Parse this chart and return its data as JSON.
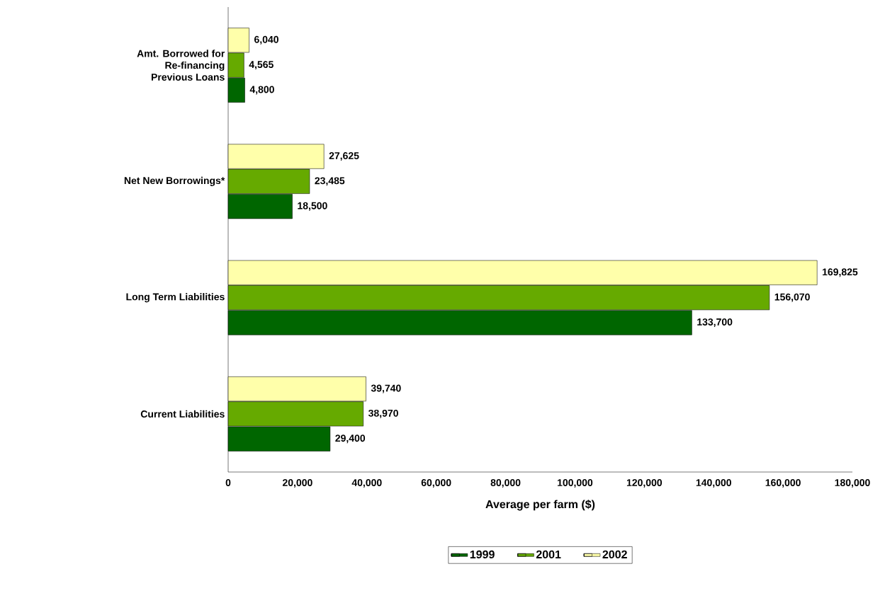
{
  "chart_data": {
    "type": "bar",
    "orientation": "horizontal",
    "categories": [
      "Amt. Borrowed for Re-financing Previous Loans",
      "Net New Borrowings*",
      "Long Term Liabilities",
      "Current Liabilities"
    ],
    "series": [
      {
        "name": "1999",
        "color": "#006600",
        "values": [
          4800,
          18500,
          133700,
          29400
        ],
        "value_labels": [
          "4,800",
          "18,500",
          "133,700",
          "29,400"
        ]
      },
      {
        "name": "2001",
        "color": "#66aa00",
        "values": [
          4565,
          23485,
          156070,
          38970
        ],
        "value_labels": [
          "4,565",
          "23,485",
          "156,070",
          "38,970"
        ]
      },
      {
        "name": "2002",
        "color": "#ffffaa",
        "values": [
          6040,
          27625,
          169825,
          39740
        ],
        "value_labels": [
          "6,040",
          "27,625",
          "169,825",
          "39,740"
        ]
      }
    ],
    "xlim": [
      0,
      180000
    ],
    "xticks": [
      0,
      {
        "value": 20000,
        "label": "20,000"
      },
      {
        "value": 40000,
        "label": "40,000"
      },
      {
        "value": 60000,
        "label": "60,000"
      },
      {
        "value": 80000,
        "label": "80,000"
      },
      {
        "value": 100000,
        "label": "100,000"
      },
      {
        "value": 120000,
        "label": "120,000"
      },
      {
        "value": 140000,
        "label": "140,000"
      },
      {
        "value": 160000,
        "label": "160,000"
      },
      {
        "value": 180000,
        "label": "180,000"
      }
    ],
    "xlabel": "Average per farm ($)",
    "legend": "bottom"
  }
}
